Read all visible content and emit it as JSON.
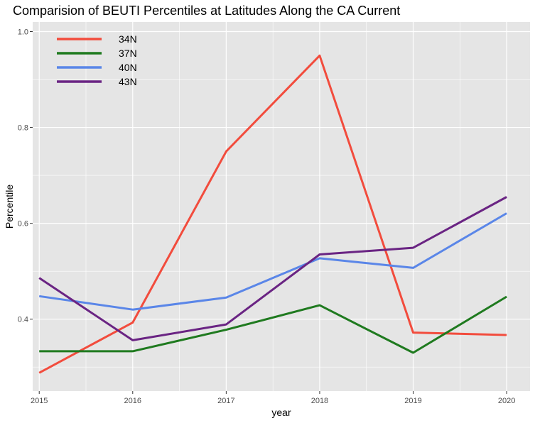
{
  "chart_data": {
    "type": "line",
    "title": "Comparision of BEUTI Percentiles at Latitudes Along the CA Current",
    "xlabel": "year",
    "ylabel": "Percentile",
    "x": [
      2015,
      2016,
      2017,
      2018,
      2019,
      2020
    ],
    "x_tick_labels": [
      "2015",
      "2016",
      "2017",
      "2018",
      "2019",
      "2020"
    ],
    "xlim": [
      2014.93,
      2020.25
    ],
    "ylim": [
      0.25,
      1.02
    ],
    "y_ticks": [
      0.4,
      0.6,
      0.8,
      1.0
    ],
    "y_tick_labels": [
      "0.4",
      "0.6",
      "0.8",
      "1.0"
    ],
    "grid": true,
    "legend_position": "top-left",
    "panel_background": "#e5e5e5",
    "grid_color": "#ffffff",
    "series": [
      {
        "name": "34N",
        "color": "#f24c3d",
        "values": [
          0.288,
          0.393,
          0.75,
          0.95,
          0.372,
          0.367
        ]
      },
      {
        "name": "37N",
        "color": "#1f7a1f",
        "values": [
          0.333,
          0.333,
          0.378,
          0.429,
          0.33,
          0.447
        ]
      },
      {
        "name": "40N",
        "color": "#5a86e8",
        "values": [
          0.448,
          0.42,
          0.445,
          0.527,
          0.507,
          0.621
        ]
      },
      {
        "name": "43N",
        "color": "#6a2483",
        "values": [
          0.486,
          0.356,
          0.389,
          0.535,
          0.549,
          0.655
        ]
      }
    ]
  }
}
